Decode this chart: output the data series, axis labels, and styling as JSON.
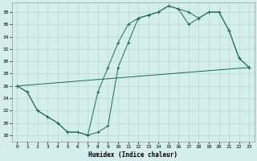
{
  "xlabel": "Humidex (Indice chaleur)",
  "bg_color": "#d4eeee",
  "line_color": "#1a6b5a",
  "grid_color": "#b8d8d8",
  "xlim": [
    -0.5,
    23.5
  ],
  "ylim": [
    17,
    39.5
  ],
  "xticks": [
    0,
    1,
    2,
    3,
    4,
    5,
    6,
    7,
    8,
    9,
    10,
    11,
    12,
    13,
    14,
    15,
    16,
    17,
    18,
    19,
    20,
    21,
    22,
    23
  ],
  "yticks": [
    18,
    20,
    22,
    24,
    26,
    28,
    30,
    32,
    34,
    36,
    38
  ],
  "line1_x": [
    0,
    1,
    2,
    3,
    4,
    5,
    6,
    7,
    8,
    9,
    10,
    11,
    12,
    13,
    14,
    15,
    16,
    17,
    18,
    19,
    20,
    21,
    22,
    23
  ],
  "line1_y": [
    26,
    25,
    22,
    21,
    20,
    18.5,
    18.5,
    18,
    18.5,
    19.5,
    29,
    33,
    37,
    37.5,
    38,
    39,
    38.5,
    38,
    37,
    38,
    38,
    35,
    30.5,
    29
  ],
  "line2_x": [
    0,
    1,
    2,
    3,
    4,
    5,
    6,
    7,
    8,
    9,
    10,
    11,
    12,
    13,
    14,
    15,
    16,
    17,
    18,
    19,
    20,
    21,
    22,
    23
  ],
  "line2_y": [
    26,
    25,
    22,
    21,
    20,
    18.5,
    18.5,
    18,
    25,
    29,
    33,
    36,
    37,
    37.5,
    38,
    39,
    38.5,
    36,
    37,
    38,
    38,
    35,
    30.5,
    29
  ],
  "line3_x": [
    0,
    23
  ],
  "line3_y": [
    26,
    29
  ]
}
